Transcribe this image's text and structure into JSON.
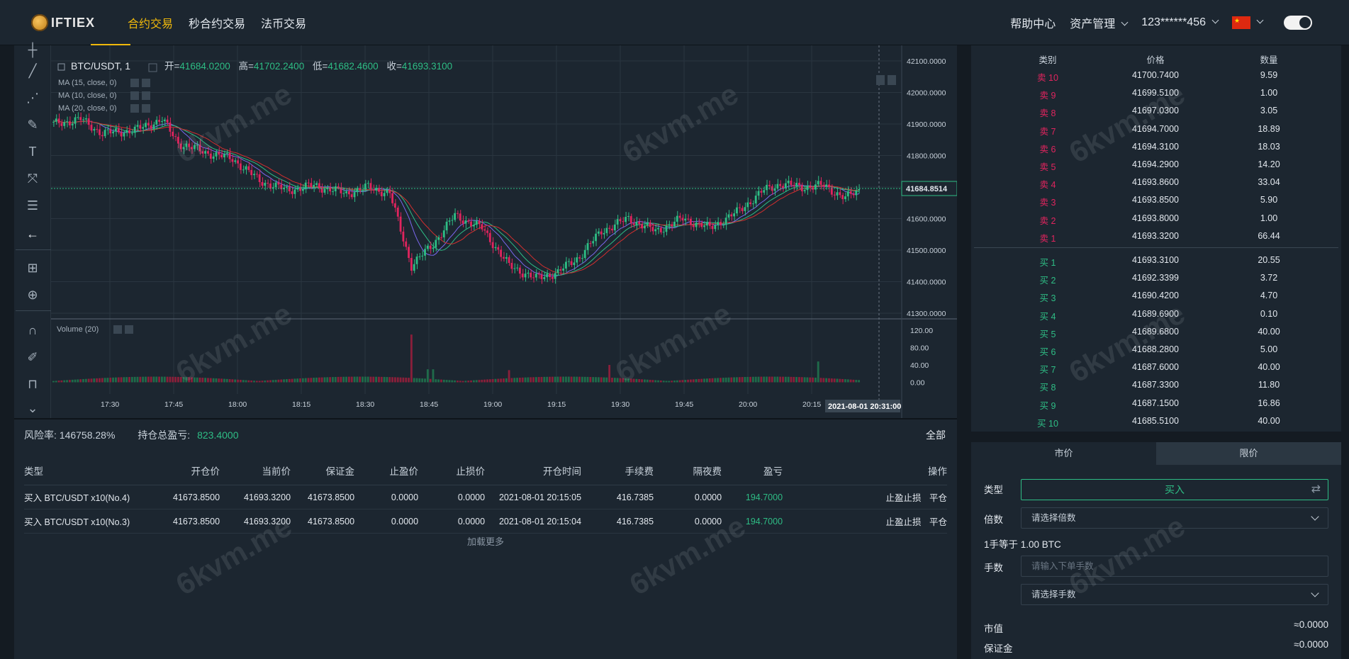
{
  "header": {
    "logo_text": "IFTIEX",
    "nav": [
      "合约交易",
      "秒合约交易",
      "法币交易"
    ],
    "help": "帮助中心",
    "assets": "资产管理",
    "account": "123******456"
  },
  "chart": {
    "symbol": "BTC/USDT, 1",
    "open_label": "开=",
    "open": "41684.0200",
    "high_label": "高=",
    "high": "41702.2400",
    "low_label": "低=",
    "low": "41682.4600",
    "close_label": "收=",
    "close": "41693.3100",
    "ma": [
      "MA (15, close, 0)",
      "MA (10, close, 0)",
      "MA (20, close, 0)"
    ],
    "volume_label": "Volume (20)",
    "price_ticks": [
      "42100.0000",
      "42000.0000",
      "41900.0000",
      "41800.0000",
      "41700.0000",
      "41600.0000",
      "41500.0000",
      "41400.0000",
      "41300.0000"
    ],
    "last_price": "41684.8514",
    "volume_ticks": [
      "120.00",
      "80.00",
      "40.00",
      "0.00"
    ],
    "time_ticks": [
      "17:30",
      "17:45",
      "18:00",
      "18:15",
      "18:30",
      "18:45",
      "19:00",
      "19:15",
      "19:30",
      "19:45",
      "20:00",
      "20:15"
    ],
    "crosshair_time": "2021-08-01 20:31:00",
    "colors": {
      "up": "#2ebd85",
      "down": "#e0245e",
      "ma15": "#2ebd85",
      "ma10": "#7b68ee",
      "ma20": "#d32f2f"
    }
  },
  "positions": {
    "risk_label": "风险率:",
    "risk_value": "146758.28%",
    "pnl_label": "持仓总盈亏:",
    "pnl_value": "823.4000",
    "all": "全部",
    "columns": [
      "类型",
      "开仓价",
      "当前价",
      "保证金",
      "止盈价",
      "止损价",
      "开仓时间",
      "手续费",
      "隔夜费",
      "盈亏",
      "操作"
    ],
    "rows": [
      {
        "type": "买入 BTC/USDT x10(No.4)",
        "open": "41673.8500",
        "current": "41693.3200",
        "margin": "41673.8500",
        "tp": "0.0000",
        "sl": "0.0000",
        "time": "2021-08-01 20:15:05",
        "fee": "416.7385",
        "overnight": "0.0000",
        "pnl": "194.7000",
        "op1": "止盈止损",
        "op2": "平仓"
      },
      {
        "type": "买入 BTC/USDT x10(No.3)",
        "open": "41673.8500",
        "current": "41693.3200",
        "margin": "41673.8500",
        "tp": "0.0000",
        "sl": "0.0000",
        "time": "2021-08-01 20:15:04",
        "fee": "416.7385",
        "overnight": "0.0000",
        "pnl": "194.7000",
        "op1": "止盈止损",
        "op2": "平仓"
      }
    ],
    "load_more": "加载更多"
  },
  "orderbook": {
    "headers": [
      "类别",
      "价格",
      "数量"
    ],
    "sells": [
      {
        "label": "卖 10",
        "price": "41700.7400",
        "qty": "9.59"
      },
      {
        "label": "卖 9",
        "price": "41699.5100",
        "qty": "1.00"
      },
      {
        "label": "卖 8",
        "price": "41697.0300",
        "qty": "3.05"
      },
      {
        "label": "卖 7",
        "price": "41694.7000",
        "qty": "18.89"
      },
      {
        "label": "卖 6",
        "price": "41694.3100",
        "qty": "18.03"
      },
      {
        "label": "卖 5",
        "price": "41694.2900",
        "qty": "14.20"
      },
      {
        "label": "卖 4",
        "price": "41693.8600",
        "qty": "33.04"
      },
      {
        "label": "卖 3",
        "price": "41693.8500",
        "qty": "5.90"
      },
      {
        "label": "卖 2",
        "price": "41693.8000",
        "qty": "1.00"
      },
      {
        "label": "卖 1",
        "price": "41693.3200",
        "qty": "66.44"
      }
    ],
    "buys": [
      {
        "label": "买 1",
        "price": "41693.3100",
        "qty": "20.55"
      },
      {
        "label": "买 2",
        "price": "41692.3399",
        "qty": "3.72"
      },
      {
        "label": "买 3",
        "price": "41690.4200",
        "qty": "4.70"
      },
      {
        "label": "买 4",
        "price": "41689.6900",
        "qty": "0.10"
      },
      {
        "label": "买 5",
        "price": "41689.6800",
        "qty": "40.00"
      },
      {
        "label": "买 6",
        "price": "41688.2800",
        "qty": "5.00"
      },
      {
        "label": "买 7",
        "price": "41687.6000",
        "qty": "40.00"
      },
      {
        "label": "买 8",
        "price": "41687.3300",
        "qty": "11.80"
      },
      {
        "label": "买 9",
        "price": "41687.1500",
        "qty": "16.86"
      },
      {
        "label": "买 10",
        "price": "41685.5100",
        "qty": "40.00"
      }
    ]
  },
  "trade": {
    "tab_market": "市价",
    "tab_limit": "限价",
    "type_label": "类型",
    "type_value": "买入",
    "leverage_label": "倍数",
    "leverage_placeholder": "请选择倍数",
    "lot_info": "1手等于 1.00 BTC",
    "lots_label": "手数",
    "lots_placeholder": "请输入下单手数",
    "lots_select": "请选择手数",
    "market_value_label": "市值",
    "market_value": "≈0.0000",
    "margin_label": "保证金",
    "margin_value": "≈0.0000"
  },
  "watermark": "6kvm.me"
}
